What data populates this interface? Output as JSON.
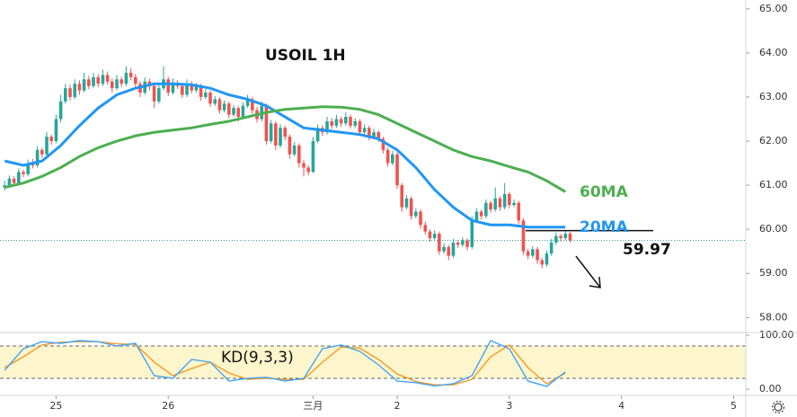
{
  "chart_data": {
    "type": "candlestick",
    "title": "USOIL 1H",
    "up_color": "#26a69a",
    "down_color": "#ef5350",
    "xlim": [
      -1,
      158.6
    ],
    "ylim": [
      57.66,
      65.2
    ],
    "yticks": [
      {
        "value": 65,
        "label": "65.00"
      },
      {
        "value": 64,
        "label": "64.00"
      },
      {
        "value": 63,
        "label": "63.00"
      },
      {
        "value": 62,
        "label": "62.00"
      },
      {
        "value": 61,
        "label": "61.00"
      },
      {
        "value": 60,
        "label": "60.00"
      },
      {
        "value": 59,
        "label": "59.00"
      },
      {
        "value": 58,
        "label": "58.00"
      }
    ],
    "xticks": [
      {
        "value": 11,
        "label": "25"
      },
      {
        "value": 35,
        "label": "26"
      },
      {
        "value": 66,
        "label": "三月"
      },
      {
        "value": 84,
        "label": "2"
      },
      {
        "value": 108,
        "label": "3"
      },
      {
        "value": 132,
        "label": "4"
      },
      {
        "value": 156,
        "label": "5"
      }
    ],
    "candles": [
      [
        60.95,
        61.1,
        60.88,
        61.0
      ],
      [
        61.0,
        61.22,
        60.95,
        61.15
      ],
      [
        61.15,
        61.2,
        60.98,
        61.05
      ],
      [
        61.05,
        61.38,
        61.0,
        61.3
      ],
      [
        61.3,
        61.35,
        61.18,
        61.25
      ],
      [
        61.25,
        61.58,
        61.2,
        61.5
      ],
      [
        61.5,
        61.6,
        61.38,
        61.45
      ],
      [
        61.45,
        61.88,
        61.4,
        61.8
      ],
      [
        61.8,
        61.85,
        61.62,
        61.7
      ],
      [
        61.7,
        62.2,
        61.65,
        62.1
      ],
      [
        62.1,
        62.15,
        61.92,
        62.0
      ],
      [
        62.0,
        62.6,
        61.95,
        62.5
      ],
      [
        62.5,
        63.05,
        62.42,
        62.9
      ],
      [
        62.9,
        63.3,
        62.85,
        63.2
      ],
      [
        63.2,
        63.28,
        62.92,
        63.0
      ],
      [
        63.0,
        63.4,
        62.95,
        63.3
      ],
      [
        63.3,
        63.38,
        63.05,
        63.15
      ],
      [
        63.15,
        63.55,
        63.1,
        63.4
      ],
      [
        63.4,
        63.48,
        63.18,
        63.25
      ],
      [
        63.25,
        63.55,
        63.2,
        63.45
      ],
      [
        63.45,
        63.52,
        63.22,
        63.3
      ],
      [
        63.3,
        63.62,
        63.25,
        63.5
      ],
      [
        63.5,
        63.58,
        63.28,
        63.35
      ],
      [
        63.35,
        63.42,
        63.1,
        63.2
      ],
      [
        63.2,
        63.5,
        63.15,
        63.4
      ],
      [
        63.4,
        63.46,
        63.22,
        63.3
      ],
      [
        63.3,
        63.7,
        63.25,
        63.55
      ],
      [
        63.55,
        63.65,
        63.38,
        63.45
      ],
      [
        63.45,
        63.52,
        63.22,
        63.3
      ],
      [
        63.3,
        63.36,
        63.0,
        63.1
      ],
      [
        63.1,
        63.45,
        63.05,
        63.35
      ],
      [
        63.35,
        63.42,
        63.15,
        63.25
      ],
      [
        63.25,
        63.3,
        62.75,
        62.9
      ],
      [
        62.9,
        63.28,
        62.85,
        63.2
      ],
      [
        63.2,
        63.7,
        63.15,
        63.4
      ],
      [
        63.4,
        63.46,
        63.02,
        63.1
      ],
      [
        63.1,
        63.42,
        63.05,
        63.3
      ],
      [
        63.3,
        63.38,
        63.18,
        63.25
      ],
      [
        63.25,
        63.3,
        62.98,
        63.05
      ],
      [
        63.05,
        63.4,
        63.0,
        63.3
      ],
      [
        63.3,
        63.36,
        63.08,
        63.15
      ],
      [
        63.15,
        63.32,
        63.1,
        63.25
      ],
      [
        63.25,
        63.3,
        62.92,
        63.0
      ],
      [
        63.0,
        63.18,
        62.95,
        63.1
      ],
      [
        63.1,
        63.15,
        62.78,
        62.85
      ],
      [
        62.85,
        63.02,
        62.8,
        62.95
      ],
      [
        62.95,
        63.0,
        62.62,
        62.7
      ],
      [
        62.7,
        62.92,
        62.65,
        62.85
      ],
      [
        62.85,
        62.9,
        62.52,
        62.6
      ],
      [
        62.6,
        62.82,
        62.55,
        62.75
      ],
      [
        62.75,
        62.8,
        62.45,
        62.55
      ],
      [
        62.55,
        62.88,
        62.5,
        62.8
      ],
      [
        62.8,
        63.05,
        62.75,
        62.95
      ],
      [
        62.95,
        63.0,
        62.62,
        62.7
      ],
      [
        62.7,
        62.78,
        62.42,
        62.5
      ],
      [
        62.5,
        62.9,
        62.45,
        62.8
      ],
      [
        62.8,
        62.85,
        61.92,
        62.0
      ],
      [
        62.0,
        62.48,
        61.95,
        62.4
      ],
      [
        62.4,
        62.45,
        61.8,
        61.9
      ],
      [
        61.9,
        62.38,
        61.85,
        62.3
      ],
      [
        62.3,
        62.35,
        62.02,
        62.1
      ],
      [
        62.1,
        62.15,
        61.6,
        61.7
      ],
      [
        61.7,
        61.98,
        61.65,
        61.9
      ],
      [
        61.9,
        61.95,
        61.4,
        61.5
      ],
      [
        61.5,
        61.58,
        61.2,
        61.4
      ],
      [
        61.4,
        61.46,
        61.22,
        61.3
      ],
      [
        61.3,
        62.1,
        61.28,
        62.0
      ],
      [
        62.0,
        62.38,
        61.95,
        62.3
      ],
      [
        62.3,
        62.36,
        62.12,
        62.2
      ],
      [
        62.2,
        62.55,
        62.15,
        62.45
      ],
      [
        62.45,
        62.52,
        62.28,
        62.35
      ],
      [
        62.35,
        62.6,
        62.3,
        62.5
      ],
      [
        62.5,
        62.56,
        62.32,
        62.4
      ],
      [
        62.4,
        62.65,
        62.35,
        62.55
      ],
      [
        62.55,
        62.6,
        62.28,
        62.35
      ],
      [
        62.35,
        62.52,
        62.3,
        62.45
      ],
      [
        62.45,
        62.5,
        62.12,
        62.2
      ],
      [
        62.2,
        62.38,
        62.15,
        62.3
      ],
      [
        62.3,
        62.35,
        62.02,
        62.1
      ],
      [
        62.1,
        62.28,
        62.05,
        62.2
      ],
      [
        62.2,
        62.25,
        61.98,
        62.05
      ],
      [
        62.05,
        62.1,
        61.72,
        61.8
      ],
      [
        61.8,
        61.85,
        61.42,
        61.5
      ],
      [
        61.5,
        61.78,
        61.45,
        61.7
      ],
      [
        61.7,
        61.75,
        60.92,
        61.0
      ],
      [
        61.0,
        61.05,
        60.4,
        60.5
      ],
      [
        60.5,
        60.78,
        60.45,
        60.7
      ],
      [
        60.7,
        60.75,
        60.22,
        60.3
      ],
      [
        60.3,
        60.48,
        60.25,
        60.4
      ],
      [
        60.4,
        60.45,
        60.02,
        60.1
      ],
      [
        60.1,
        60.18,
        59.88,
        59.95
      ],
      [
        59.95,
        60.0,
        59.72,
        59.8
      ],
      [
        59.8,
        59.98,
        59.75,
        59.9
      ],
      [
        59.9,
        59.95,
        59.42,
        59.5
      ],
      [
        59.5,
        59.68,
        59.45,
        59.6
      ],
      [
        59.6,
        59.65,
        59.3,
        59.4
      ],
      [
        59.4,
        59.78,
        59.35,
        59.7
      ],
      [
        59.7,
        59.75,
        59.58,
        59.65
      ],
      [
        59.65,
        59.82,
        59.6,
        59.75
      ],
      [
        59.75,
        59.8,
        59.52,
        59.6
      ],
      [
        59.6,
        60.3,
        59.55,
        60.2
      ],
      [
        60.2,
        60.48,
        60.15,
        60.4
      ],
      [
        60.4,
        60.45,
        60.22,
        60.3
      ],
      [
        60.3,
        60.68,
        60.25,
        60.6
      ],
      [
        60.6,
        60.65,
        60.38,
        60.45
      ],
      [
        60.45,
        60.95,
        60.4,
        60.7
      ],
      [
        60.7,
        60.75,
        60.42,
        60.5
      ],
      [
        60.5,
        61.05,
        60.45,
        60.8
      ],
      [
        60.8,
        60.85,
        60.48,
        60.55
      ],
      [
        60.55,
        60.68,
        60.5,
        60.6
      ],
      [
        60.6,
        60.65,
        60.12,
        60.2
      ],
      [
        60.2,
        60.25,
        59.42,
        59.5
      ],
      [
        59.5,
        59.56,
        59.32,
        59.4
      ],
      [
        59.4,
        59.62,
        59.35,
        59.55
      ],
      [
        59.55,
        59.6,
        59.22,
        59.3
      ],
      [
        59.3,
        59.35,
        59.12,
        59.2
      ],
      [
        59.2,
        59.52,
        59.15,
        59.45
      ],
      [
        59.45,
        59.78,
        59.4,
        59.7
      ],
      [
        59.7,
        59.92,
        59.65,
        59.85
      ],
      [
        59.85,
        59.9,
        59.72,
        59.8
      ],
      [
        59.8,
        59.96,
        59.75,
        59.9
      ],
      [
        59.9,
        59.94,
        59.7,
        59.75
      ]
    ],
    "series": [
      {
        "name": "20MA",
        "color": "#2196f3",
        "x": [
          0,
          4,
          8,
          12,
          16,
          20,
          24,
          28,
          32,
          36,
          40,
          44,
          48,
          52,
          56,
          60,
          64,
          68,
          72,
          76,
          80,
          84,
          88,
          92,
          96,
          100,
          104,
          108,
          112,
          116,
          120
        ],
        "values": [
          61.55,
          61.45,
          61.55,
          61.9,
          62.35,
          62.75,
          63.05,
          63.2,
          63.3,
          63.3,
          63.28,
          63.2,
          63.05,
          62.95,
          62.8,
          62.55,
          62.3,
          62.25,
          62.2,
          62.15,
          62.05,
          61.8,
          61.4,
          60.9,
          60.5,
          60.2,
          60.1,
          60.1,
          60.05,
          60.05,
          60.05
        ]
      },
      {
        "name": "60MA",
        "color": "#4caf50",
        "x": [
          0,
          4,
          8,
          12,
          16,
          20,
          24,
          28,
          32,
          36,
          40,
          44,
          48,
          52,
          56,
          60,
          64,
          68,
          72,
          76,
          80,
          84,
          88,
          92,
          96,
          100,
          104,
          108,
          112,
          116,
          120
        ],
        "values": [
          60.95,
          61.05,
          61.2,
          61.4,
          61.65,
          61.85,
          62.0,
          62.12,
          62.2,
          62.25,
          62.3,
          62.38,
          62.45,
          62.55,
          62.65,
          62.72,
          62.75,
          62.78,
          62.77,
          62.72,
          62.6,
          62.4,
          62.2,
          62.0,
          61.8,
          61.65,
          61.55,
          61.42,
          61.3,
          61.1,
          60.85
        ]
      }
    ],
    "level": {
      "value": 59.97,
      "label": "59.97"
    },
    "kd": {
      "title": "KD(9,3,3)",
      "ylim": [
        -11.7,
        105
      ],
      "yticks": [
        {
          "value": 100,
          "label": "100.00"
        },
        {
          "value": 0,
          "label": "0.00"
        }
      ],
      "bands": [
        20,
        80
      ],
      "band_color": "#fdf5cc",
      "x": [
        0,
        4,
        8,
        12,
        16,
        20,
        24,
        28,
        32,
        36,
        40,
        44,
        48,
        52,
        56,
        60,
        64,
        68,
        72,
        76,
        80,
        84,
        88,
        92,
        96,
        100,
        104,
        108,
        112,
        116,
        120
      ],
      "k": {
        "color": "#42a5f5",
        "values": [
          35,
          75,
          88,
          85,
          90,
          88,
          80,
          85,
          25,
          20,
          55,
          50,
          15,
          20,
          22,
          15,
          20,
          75,
          82,
          70,
          45,
          15,
          12,
          6,
          10,
          25,
          90,
          75,
          15,
          5,
          32
        ]
      },
      "d": {
        "color": "#f59a23",
        "values": [
          40,
          60,
          82,
          87,
          88,
          88,
          84,
          83,
          50,
          25,
          38,
          50,
          30,
          18,
          20,
          18,
          18,
          50,
          78,
          76,
          55,
          28,
          14,
          8,
          8,
          18,
          60,
          82,
          40,
          10,
          30
        ]
      }
    }
  }
}
